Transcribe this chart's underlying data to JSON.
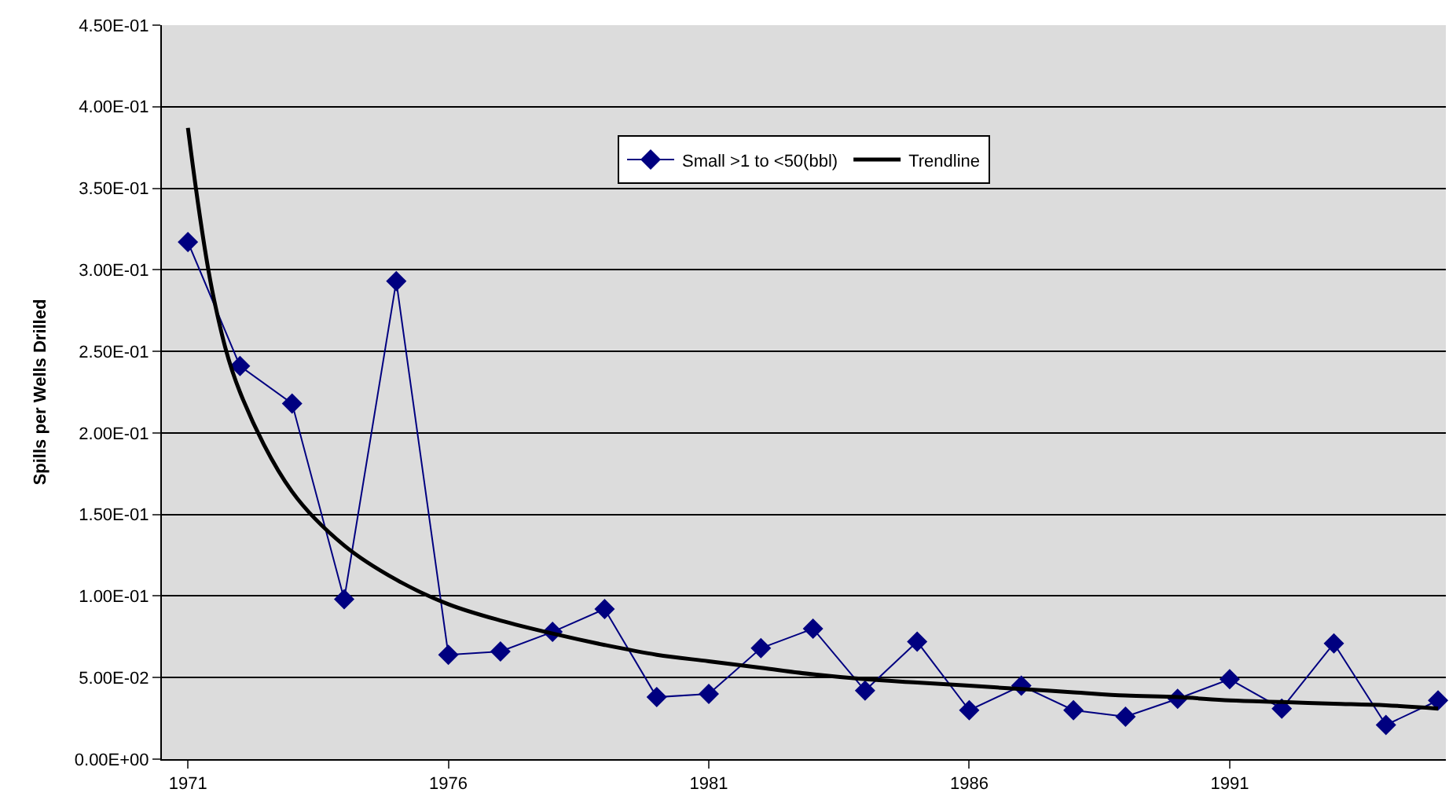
{
  "chart_data": {
    "type": "line",
    "ylabel": "Spills per Wells Drilled",
    "xlim": [
      1970.5,
      1995.15
    ],
    "xticks": [
      1971,
      1976,
      1981,
      1986,
      1991
    ],
    "ylim": [
      0,
      0.45
    ],
    "yticks": [
      {
        "value": 0,
        "label": "0.00E+00"
      },
      {
        "value": 0.05,
        "label": "5.00E-02"
      },
      {
        "value": 0.1,
        "label": "1.00E-01"
      },
      {
        "value": 0.15,
        "label": "1.50E-01"
      },
      {
        "value": 0.2,
        "label": "2.00E-01"
      },
      {
        "value": 0.25,
        "label": "2.50E-01"
      },
      {
        "value": 0.3,
        "label": "3.00E-01"
      },
      {
        "value": 0.35,
        "label": "3.50E-01"
      },
      {
        "value": 0.4,
        "label": "4.00E-01"
      },
      {
        "value": 0.45,
        "label": "4.50E-01"
      }
    ],
    "grid": "y",
    "legend": "top",
    "series": [
      {
        "name": "Small >1 to <50(bbl)",
        "color": "#000080",
        "marker": "diamond",
        "x": [
          1971,
          1972,
          1973,
          1974,
          1975,
          1976,
          1977,
          1978,
          1979,
          1980,
          1981,
          1982,
          1983,
          1984,
          1985,
          1986,
          1987,
          1988,
          1989,
          1990,
          1991,
          1992,
          1993,
          1994,
          1995
        ],
        "values": [
          0.317,
          0.241,
          0.218,
          0.098,
          0.293,
          0.064,
          0.066,
          0.078,
          0.092,
          0.038,
          0.04,
          0.068,
          0.08,
          0.042,
          0.072,
          0.03,
          0.045,
          0.03,
          0.026,
          0.037,
          0.049,
          0.031,
          0.071,
          0.021,
          0.036
        ]
      },
      {
        "name": "Trendline",
        "color": "#000000",
        "marker": "none",
        "x": [
          1971,
          1971.5,
          1972,
          1973,
          1974,
          1975,
          1976,
          1977,
          1978,
          1979,
          1980,
          1981,
          1982,
          1983,
          1984,
          1985,
          1986,
          1987,
          1988,
          1989,
          1990,
          1991,
          1992,
          1993,
          1994,
          1995
        ],
        "values": [
          0.387,
          0.282,
          0.225,
          0.164,
          0.131,
          0.11,
          0.095,
          0.085,
          0.077,
          0.07,
          0.064,
          0.06,
          0.056,
          0.052,
          0.049,
          0.047,
          0.045,
          0.043,
          0.041,
          0.039,
          0.038,
          0.036,
          0.035,
          0.034,
          0.033,
          0.031
        ]
      }
    ]
  }
}
